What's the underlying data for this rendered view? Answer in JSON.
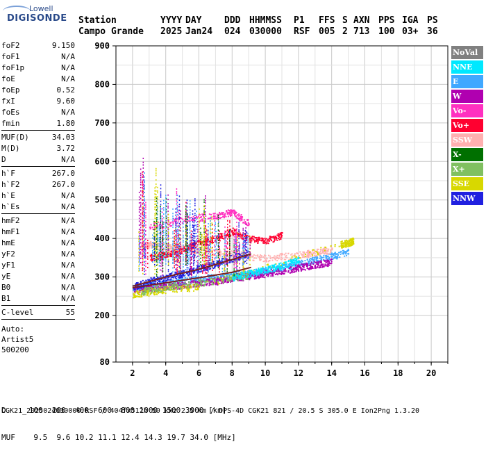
{
  "logo": {
    "top": "Lowell",
    "main": "DIGISONDE"
  },
  "header": {
    "station_label": "Station",
    "station_value": "Campo Grande",
    "cols": [
      {
        "label": "YYYY",
        "value": "2025"
      },
      {
        "label": "DAY",
        "value": "Jan24"
      },
      {
        "label": "DDD",
        "value": "024"
      },
      {
        "label": "HHMMSS",
        "value": "030000"
      },
      {
        "label": "P1",
        "value": "RSF"
      },
      {
        "label": "FFS",
        "value": "005"
      },
      {
        "label": "S",
        "value": "2"
      },
      {
        "label": "AXN",
        "value": "713"
      },
      {
        "label": "PPS",
        "value": "100"
      },
      {
        "label": "IGA",
        "value": "03+"
      },
      {
        "label": "PS",
        "value": "36"
      }
    ]
  },
  "params": {
    "group1": [
      {
        "name": "foF2",
        "value": "9.150"
      },
      {
        "name": "foF1",
        "value": "N/A"
      },
      {
        "name": "foF1p",
        "value": "N/A"
      },
      {
        "name": "foE",
        "value": "N/A"
      },
      {
        "name": "foEp",
        "value": "0.52"
      },
      {
        "name": "fxI",
        "value": "9.60"
      },
      {
        "name": "foEs",
        "value": "N/A"
      },
      {
        "name": "fmin",
        "value": "1.80"
      }
    ],
    "group2": [
      {
        "name": "MUF(D)",
        "value": "34.03"
      },
      {
        "name": "M(D)",
        "value": "3.72"
      },
      {
        "name": "D",
        "value": "N/A"
      }
    ],
    "group3": [
      {
        "name": "h`F",
        "value": "267.0"
      },
      {
        "name": "h`F2",
        "value": "267.0"
      },
      {
        "name": "h`E",
        "value": "N/A"
      },
      {
        "name": "h`Es",
        "value": "N/A"
      }
    ],
    "group4": [
      {
        "name": "hmF2",
        "value": "N/A"
      },
      {
        "name": "hmF1",
        "value": "N/A"
      },
      {
        "name": "hmE",
        "value": "N/A"
      },
      {
        "name": "yF2",
        "value": "N/A"
      },
      {
        "name": "yF1",
        "value": "N/A"
      },
      {
        "name": "yE",
        "value": "N/A"
      },
      {
        "name": "B0",
        "value": "N/A"
      },
      {
        "name": "B1",
        "value": "N/A"
      }
    ],
    "group5": [
      {
        "name": "C-level",
        "value": "55"
      }
    ],
    "auto": [
      "Auto:",
      "Artist5",
      "500200"
    ]
  },
  "legend": [
    {
      "label": "NoVal",
      "color": "#808080"
    },
    {
      "label": "NNE",
      "color": "#00e8ff"
    },
    {
      "label": "E",
      "color": "#40a8ff"
    },
    {
      "label": "W",
      "color": "#b000b0"
    },
    {
      "label": "Vo-",
      "color": "#ff30c0"
    },
    {
      "label": "Vo+",
      "color": "#ff0030"
    },
    {
      "label": "SSW",
      "color": "#ffb0b0"
    },
    {
      "label": "X-",
      "color": "#007000"
    },
    {
      "label": "X+",
      "color": "#80c060"
    },
    {
      "label": "SSE",
      "color": "#d8d800"
    },
    {
      "label": "NNW",
      "color": "#2020e0"
    }
  ],
  "chart_data": {
    "type": "scatter",
    "x_ticks": [
      "2",
      "4",
      "6",
      "8",
      "10",
      "12",
      "14",
      "16",
      "18",
      "20"
    ],
    "y_ticks": [
      "80",
      "200",
      "300",
      "400",
      "500",
      "600",
      "700",
      "800",
      "900"
    ],
    "xlim": [
      1,
      21
    ],
    "ylim": [
      80,
      900
    ],
    "grid": true,
    "series": [
      {
        "name": "E",
        "color": "#40a8ff",
        "points": [
          [
            2.0,
            272
          ],
          [
            3.0,
            278
          ],
          [
            4.0,
            284
          ],
          [
            5.0,
            290
          ],
          [
            6.0,
            296
          ],
          [
            7.0,
            300
          ],
          [
            8.0,
            305
          ],
          [
            9.0,
            310
          ],
          [
            10.0,
            318
          ],
          [
            11.0,
            326
          ],
          [
            12.0,
            335
          ],
          [
            13.0,
            345
          ],
          [
            14.0,
            355
          ],
          [
            15.0,
            365
          ]
        ]
      },
      {
        "name": "W",
        "color": "#b000b0",
        "points": [
          [
            2.0,
            268
          ],
          [
            3.0,
            272
          ],
          [
            4.0,
            276
          ],
          [
            5.0,
            280
          ],
          [
            6.0,
            285
          ],
          [
            7.0,
            290
          ],
          [
            8.0,
            296
          ],
          [
            9.0,
            303
          ],
          [
            10.0,
            310
          ],
          [
            11.0,
            318
          ],
          [
            12.0,
            325
          ],
          [
            13.0,
            333
          ],
          [
            14.0,
            340
          ]
        ]
      },
      {
        "name": "NNW",
        "color": "#2020e0",
        "points": [
          [
            2.0,
            275
          ],
          [
            3.0,
            290
          ],
          [
            4.0,
            300
          ],
          [
            5.0,
            310
          ],
          [
            6.0,
            322
          ],
          [
            7.0,
            335
          ],
          [
            8.0,
            350
          ],
          [
            9.0,
            360
          ]
        ]
      },
      {
        "name": "SSW",
        "color": "#ffb0b0",
        "points": [
          [
            2.5,
            380
          ],
          [
            3.0,
            385
          ],
          [
            4.0,
            378
          ],
          [
            5.0,
            375
          ],
          [
            6.0,
            370
          ],
          [
            8.0,
            360
          ],
          [
            10.0,
            350
          ],
          [
            12.0,
            358
          ],
          [
            13.0,
            365
          ],
          [
            14.0,
            372
          ]
        ]
      },
      {
        "name": "SSE",
        "color": "#d8d800",
        "points": [
          [
            2.0,
            255
          ],
          [
            3.0,
            262
          ],
          [
            4.0,
            268
          ],
          [
            6.0,
            275
          ],
          [
            14.5,
            385
          ],
          [
            15.0,
            390
          ],
          [
            15.3,
            395
          ]
        ]
      },
      {
        "name": "Vo+",
        "color": "#ff0030",
        "points": [
          [
            3.0,
            350
          ],
          [
            4.0,
            360
          ],
          [
            5.0,
            370
          ],
          [
            6.0,
            390
          ],
          [
            7.0,
            400
          ],
          [
            8.0,
            420
          ],
          [
            9.0,
            400
          ],
          [
            10.0,
            395
          ],
          [
            11.0,
            410
          ]
        ]
      },
      {
        "name": "X+",
        "color": "#80c060",
        "points": [
          [
            2.5,
            262
          ],
          [
            4.0,
            275
          ],
          [
            6.0,
            285
          ],
          [
            8.0,
            300
          ],
          [
            9.0,
            305
          ]
        ]
      },
      {
        "name": "NNE",
        "color": "#00e8ff",
        "points": [
          [
            8.0,
            300
          ],
          [
            9.0,
            310
          ],
          [
            10.0,
            320
          ],
          [
            11.0,
            330
          ],
          [
            12.0,
            345
          ]
        ]
      },
      {
        "name": "Vo-",
        "color": "#ff30c0",
        "points": [
          [
            3.0,
            430
          ],
          [
            5.0,
            450
          ],
          [
            7.0,
            460
          ],
          [
            8.0,
            470
          ],
          [
            9.0,
            440
          ]
        ]
      }
    ],
    "trace_lines": [
      {
        "color": "#7a2020",
        "points": [
          [
            2.0,
            272
          ],
          [
            4.0,
            285
          ],
          [
            6.0,
            298
          ],
          [
            8.0,
            312
          ],
          [
            9.15,
            325
          ]
        ]
      },
      {
        "color": "#7a2020",
        "points": [
          [
            2.0,
            276
          ],
          [
            4.0,
            300
          ],
          [
            6.0,
            320
          ],
          [
            8.0,
            345
          ],
          [
            9.15,
            360
          ]
        ]
      }
    ]
  },
  "bottom": {
    "row1_label": "D",
    "row1_values": "100  200  400  600  800 1000 1500 3000 [km]",
    "row2_label": "MUF",
    "row2_values": "9.5  9.6 10.2 11.1 12.4 14.3 19.7 34.0 [MHz]"
  },
  "footer": "CGK21_2025024030000.RSF / 404fx512h 50 kHz 2.5 km / DPS-4D CGK21 821 / 20.5 S 305.0 E Ion2Png 1.3.20"
}
